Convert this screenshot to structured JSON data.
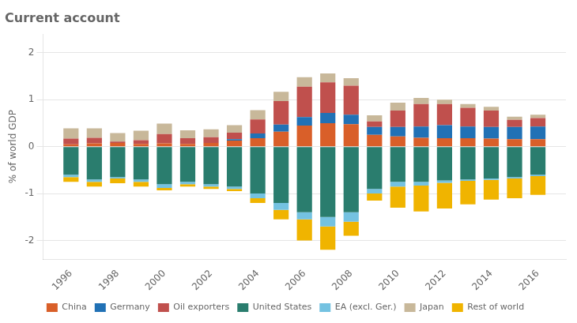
{
  "chart_data": {
    "type": "bar",
    "stacked": true,
    "title": "Current account",
    "ylabel": "% of world GDP",
    "x": [
      1996,
      1997,
      1998,
      1999,
      2000,
      2001,
      2002,
      2003,
      2004,
      2005,
      2006,
      2007,
      2008,
      2009,
      2010,
      2011,
      2012,
      2013,
      2014,
      2015,
      2016
    ],
    "series": [
      {
        "name": "China",
        "color": "#d95f29",
        "values": [
          0.05,
          0.07,
          0.08,
          0.06,
          0.07,
          0.06,
          0.08,
          0.13,
          0.18,
          0.32,
          0.45,
          0.5,
          0.48,
          0.25,
          0.22,
          0.19,
          0.18,
          0.18,
          0.17,
          0.16,
          0.16
        ]
      },
      {
        "name": "Germany",
        "color": "#2171b5",
        "values": [
          0.0,
          0.0,
          0.0,
          0.0,
          0.0,
          0.0,
          0.0,
          0.03,
          0.1,
          0.15,
          0.18,
          0.22,
          0.2,
          0.17,
          0.2,
          0.24,
          0.28,
          0.25,
          0.25,
          0.26,
          0.27
        ]
      },
      {
        "name": "Oil exporters",
        "color": "#c0504d",
        "values": [
          0.12,
          0.12,
          0.03,
          0.08,
          0.2,
          0.12,
          0.12,
          0.14,
          0.3,
          0.5,
          0.65,
          0.65,
          0.62,
          0.12,
          0.35,
          0.48,
          0.45,
          0.4,
          0.35,
          0.15,
          0.18
        ]
      },
      {
        "name": "United States",
        "color": "#2a7d6e",
        "values": [
          -0.6,
          -0.7,
          -0.65,
          -0.7,
          -0.8,
          -0.75,
          -0.8,
          -0.85,
          -1.0,
          -1.2,
          -1.4,
          -1.5,
          -1.4,
          -0.9,
          -0.75,
          -0.75,
          -0.72,
          -0.7,
          -0.68,
          -0.65,
          -0.6
        ]
      },
      {
        "name": "EA (excl. Ger.)",
        "color": "#74c2e1",
        "values": [
          -0.05,
          -0.05,
          -0.03,
          -0.05,
          -0.08,
          -0.05,
          -0.05,
          -0.05,
          -0.1,
          -0.15,
          -0.15,
          -0.2,
          -0.2,
          -0.1,
          -0.1,
          -0.08,
          -0.05,
          -0.03,
          -0.03,
          -0.03,
          -0.03
        ]
      },
      {
        "name": "Japan",
        "color": "#c8b89a",
        "values": [
          0.22,
          0.2,
          0.18,
          0.2,
          0.22,
          0.17,
          0.17,
          0.16,
          0.2,
          0.2,
          0.2,
          0.19,
          0.16,
          0.13,
          0.17,
          0.13,
          0.09,
          0.08,
          0.08,
          0.07,
          0.07
        ]
      },
      {
        "name": "Rest of world",
        "color": "#f0b400",
        "values": [
          -0.1,
          -0.1,
          -0.1,
          -0.1,
          -0.05,
          -0.05,
          -0.05,
          -0.05,
          -0.1,
          -0.2,
          -0.45,
          -0.5,
          -0.3,
          -0.15,
          -0.45,
          -0.55,
          -0.55,
          -0.5,
          -0.42,
          -0.42,
          -0.4
        ]
      }
    ],
    "xlim": [
      1994.8,
      2017.2
    ],
    "xticks": [
      1996,
      1998,
      2000,
      2002,
      2004,
      2006,
      2008,
      2010,
      2012,
      2014,
      2016
    ],
    "ylim": [
      -2.4,
      2.4
    ],
    "yticks": [
      -2,
      -1,
      0,
      1,
      2
    ],
    "grid": "y",
    "legend": "bottom"
  }
}
